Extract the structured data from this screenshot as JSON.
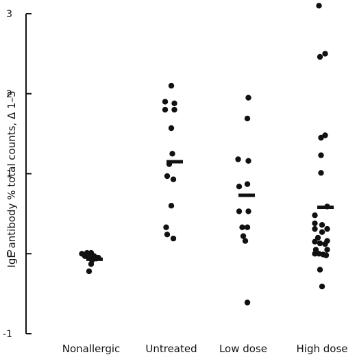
{
  "chart_data": {
    "type": "scatter",
    "ylabel": "IgE antibody   % total counts, Δ 1–3",
    "ylim": [
      -1,
      3
    ],
    "yticks": [
      "-1",
      "0",
      "1",
      "2",
      "3"
    ],
    "categories": [
      "Nonallergic",
      "Untreated",
      "Low dose",
      "High dose"
    ],
    "series": [
      {
        "category": "Nonallergic",
        "points": [
          [
            -0.09,
            0.0
          ],
          [
            -0.06,
            -0.03
          ],
          [
            -0.04,
            0.01
          ],
          [
            -0.03,
            -0.04
          ],
          [
            -0.01,
            -0.06
          ],
          [
            0.0,
            0.01
          ],
          [
            0.01,
            -0.08
          ],
          [
            0.03,
            -0.03
          ],
          [
            0.05,
            -0.06
          ],
          [
            0.07,
            -0.05
          ],
          [
            0.0,
            -0.13
          ],
          [
            -0.02,
            -0.22
          ]
        ],
        "mean": -0.07
      },
      {
        "category": "Untreated",
        "points": [
          [
            0.0,
            2.1
          ],
          [
            -0.06,
            1.9
          ],
          [
            0.03,
            1.88
          ],
          [
            -0.06,
            1.8
          ],
          [
            0.03,
            1.8
          ],
          [
            0.0,
            1.57
          ],
          [
            0.01,
            1.25
          ],
          [
            -0.02,
            1.12
          ],
          [
            -0.04,
            0.97
          ],
          [
            0.02,
            0.93
          ],
          [
            0.0,
            0.6
          ],
          [
            -0.05,
            0.33
          ],
          [
            -0.04,
            0.24
          ],
          [
            0.02,
            0.19
          ]
        ],
        "mean": 1.15
      },
      {
        "category": "Low dose",
        "points": [
          [
            0.05,
            1.95
          ],
          [
            0.04,
            1.69
          ],
          [
            -0.05,
            1.18
          ],
          [
            0.05,
            1.16
          ],
          [
            0.04,
            0.87
          ],
          [
            -0.04,
            0.84
          ],
          [
            -0.04,
            0.53
          ],
          [
            0.05,
            0.53
          ],
          [
            -0.01,
            0.33
          ],
          [
            0.04,
            0.33
          ],
          [
            0.0,
            0.22
          ],
          [
            0.02,
            0.16
          ],
          [
            0.04,
            -0.61
          ]
        ],
        "mean": 0.73
      },
      {
        "category": "High dose",
        "points": [
          [
            -0.03,
            3.1
          ],
          [
            -0.02,
            2.46
          ],
          [
            0.03,
            2.5
          ],
          [
            -0.01,
            1.45
          ],
          [
            0.03,
            1.48
          ],
          [
            -0.01,
            1.23
          ],
          [
            -0.01,
            1.01
          ],
          [
            0.05,
            0.59
          ],
          [
            -0.07,
            0.48
          ],
          [
            -0.07,
            0.38
          ],
          [
            0.0,
            0.36
          ],
          [
            -0.07,
            0.31
          ],
          [
            0.05,
            0.31
          ],
          [
            0.0,
            0.27
          ],
          [
            -0.04,
            0.2
          ],
          [
            0.05,
            0.16
          ],
          [
            -0.07,
            0.15
          ],
          [
            -0.02,
            0.13
          ],
          [
            0.03,
            0.12
          ],
          [
            -0.06,
            0.05
          ],
          [
            0.05,
            0.05
          ],
          [
            -0.07,
            0.0
          ],
          [
            -0.03,
            0.0
          ],
          [
            0.01,
            -0.01
          ],
          [
            0.04,
            -0.02
          ],
          [
            -0.02,
            -0.2
          ],
          [
            0.0,
            -0.41
          ]
        ],
        "mean": 0.58
      }
    ],
    "legend": "none",
    "grid": false
  }
}
